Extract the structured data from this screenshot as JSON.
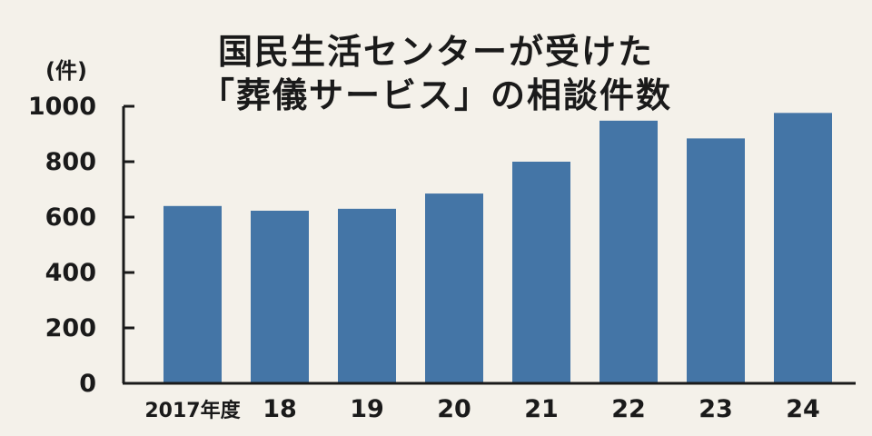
{
  "chart_data": {
    "type": "bar",
    "title_lines": [
      "国民生活センターが受けた",
      "「葬儀サービス」の相談件数"
    ],
    "unit_label": "(件)",
    "categories": [
      "2017年度",
      "18",
      "19",
      "20",
      "21",
      "22",
      "23",
      "24"
    ],
    "values": [
      640,
      623,
      630,
      685,
      800,
      948,
      884,
      976
    ],
    "ylim": [
      0,
      1000
    ],
    "yticks": [
      0,
      200,
      400,
      600,
      800,
      1000
    ],
    "xlabel": "",
    "ylabel": "",
    "grid": false,
    "bar_color": "#4475a6",
    "background_color": "#f4f1ea"
  }
}
